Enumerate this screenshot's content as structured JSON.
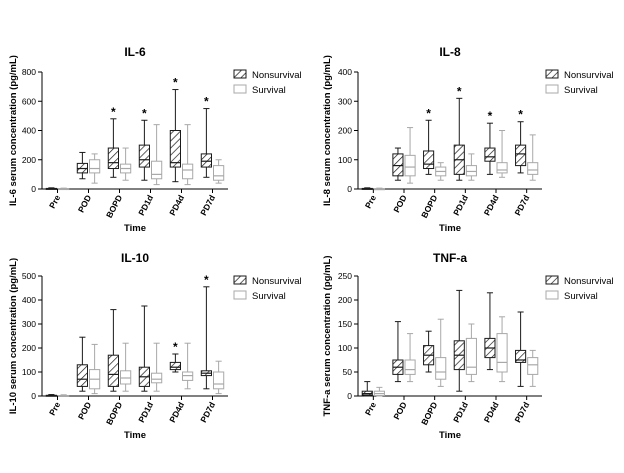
{
  "legend": {
    "nonsurvival": "Nonsurvival",
    "survival": "Survival"
  },
  "colors": {
    "nonsurvival": "#1a1a1a",
    "survival": "#a8a8a8",
    "axis": "#000000"
  },
  "chart_data": [
    {
      "type": "box",
      "title": "IL-6",
      "xlabel": "Time",
      "ylabel": "IL-6 serum concentration (pg/mL)",
      "ylim": [
        0,
        800
      ],
      "yticks": [
        0,
        200,
        400,
        600,
        800
      ],
      "categories": [
        "Pre",
        "POD",
        "BOPD",
        "PD1d",
        "PD4d",
        "PD7d"
      ],
      "significant": [
        false,
        false,
        true,
        true,
        true,
        true
      ],
      "legend_position": "right",
      "series": [
        {
          "name": "Nonsurvival",
          "boxes": [
            {
              "min": 0,
              "q1": 0,
              "median": 2,
              "q3": 4,
              "max": 8
            },
            {
              "min": 70,
              "q1": 110,
              "median": 140,
              "q3": 175,
              "max": 250
            },
            {
              "min": 80,
              "q1": 140,
              "median": 180,
              "q3": 280,
              "max": 480
            },
            {
              "min": 60,
              "q1": 150,
              "median": 200,
              "q3": 300,
              "max": 470
            },
            {
              "min": 50,
              "q1": 150,
              "median": 180,
              "q3": 400,
              "max": 680
            },
            {
              "min": 80,
              "q1": 150,
              "median": 190,
              "q3": 240,
              "max": 550
            }
          ]
        },
        {
          "name": "Survival",
          "boxes": [
            {
              "min": 0,
              "q1": 0,
              "median": 1,
              "q3": 3,
              "max": 6
            },
            {
              "min": 40,
              "q1": 110,
              "median": 140,
              "q3": 200,
              "max": 240
            },
            {
              "min": 60,
              "q1": 110,
              "median": 140,
              "q3": 170,
              "max": 280
            },
            {
              "min": 30,
              "q1": 70,
              "median": 100,
              "q3": 190,
              "max": 440
            },
            {
              "min": 30,
              "q1": 70,
              "median": 130,
              "q3": 170,
              "max": 440
            },
            {
              "min": 40,
              "q1": 60,
              "median": 90,
              "q3": 160,
              "max": 200
            }
          ]
        }
      ]
    },
    {
      "type": "box",
      "title": "IL-8",
      "xlabel": "Time",
      "ylabel": "IL-8 serum concentration (pg/mL)",
      "ylim": [
        0,
        400
      ],
      "yticks": [
        0,
        100,
        200,
        300,
        400
      ],
      "categories": [
        "Pre",
        "POD",
        "BOPD",
        "PD1d",
        "PD4d",
        "PD7d"
      ],
      "significant": [
        false,
        false,
        true,
        true,
        true,
        true
      ],
      "legend_position": "right",
      "series": [
        {
          "name": "Nonsurvival",
          "boxes": [
            {
              "min": 0,
              "q1": 0,
              "median": 1,
              "q3": 2,
              "max": 4
            },
            {
              "min": 30,
              "q1": 45,
              "median": 80,
              "q3": 120,
              "max": 140
            },
            {
              "min": 50,
              "q1": 70,
              "median": 85,
              "q3": 130,
              "max": 235
            },
            {
              "min": 30,
              "q1": 50,
              "median": 100,
              "q3": 150,
              "max": 310
            },
            {
              "min": 50,
              "q1": 95,
              "median": 110,
              "q3": 140,
              "max": 225
            },
            {
              "min": 55,
              "q1": 80,
              "median": 120,
              "q3": 150,
              "max": 230
            }
          ]
        },
        {
          "name": "Survival",
          "boxes": [
            {
              "min": 0,
              "q1": 0,
              "median": 0.5,
              "q3": 1,
              "max": 3
            },
            {
              "min": 20,
              "q1": 45,
              "median": 75,
              "q3": 115,
              "max": 210
            },
            {
              "min": 30,
              "q1": 45,
              "median": 60,
              "q3": 75,
              "max": 90
            },
            {
              "min": 30,
              "q1": 45,
              "median": 60,
              "q3": 80,
              "max": 120
            },
            {
              "min": 40,
              "q1": 55,
              "median": 65,
              "q3": 90,
              "max": 200
            },
            {
              "min": 30,
              "q1": 50,
              "median": 65,
              "q3": 90,
              "max": 185
            }
          ]
        }
      ]
    },
    {
      "type": "box",
      "title": "IL-10",
      "xlabel": "Time",
      "ylabel": "IL-10 serum concentration (pg/mL)",
      "ylim": [
        0,
        500
      ],
      "yticks": [
        0,
        100,
        200,
        300,
        400,
        500
      ],
      "categories": [
        "Pre",
        "POD",
        "BOPD",
        "PD1d",
        "PD4d",
        "PD7d"
      ],
      "significant": [
        false,
        false,
        false,
        false,
        true,
        true
      ],
      "legend_position": "right",
      "series": [
        {
          "name": "Nonsurvival",
          "boxes": [
            {
              "min": 0,
              "q1": 0,
              "median": 1,
              "q3": 3,
              "max": 6
            },
            {
              "min": 20,
              "q1": 40,
              "median": 70,
              "q3": 130,
              "max": 245
            },
            {
              "min": 20,
              "q1": 40,
              "median": 90,
              "q3": 170,
              "max": 360
            },
            {
              "min": 20,
              "q1": 40,
              "median": 80,
              "q3": 120,
              "max": 375
            },
            {
              "min": 100,
              "q1": 110,
              "median": 120,
              "q3": 140,
              "max": 175
            },
            {
              "min": 30,
              "q1": 85,
              "median": 95,
              "q3": 105,
              "max": 455
            }
          ]
        },
        {
          "name": "Survival",
          "boxes": [
            {
              "min": 0,
              "q1": 0,
              "median": 0.5,
              "q3": 2,
              "max": 5
            },
            {
              "min": 10,
              "q1": 30,
              "median": 70,
              "q3": 110,
              "max": 215
            },
            {
              "min": 20,
              "q1": 50,
              "median": 75,
              "q3": 105,
              "max": 220
            },
            {
              "min": 20,
              "q1": 55,
              "median": 70,
              "q3": 95,
              "max": 220
            },
            {
              "min": 30,
              "q1": 65,
              "median": 85,
              "q3": 100,
              "max": 220
            },
            {
              "min": 10,
              "q1": 30,
              "median": 50,
              "q3": 100,
              "max": 145
            }
          ]
        }
      ]
    },
    {
      "type": "box",
      "title": "TNF-a",
      "xlabel": "Time",
      "ylabel": "TNF-a serum concentration (pg/mL)",
      "ylim": [
        0,
        250
      ],
      "yticks": [
        0,
        50,
        100,
        150,
        200,
        250
      ],
      "categories": [
        "Pre",
        "POD",
        "BOPD",
        "PD1d",
        "PD4d",
        "PD7d"
      ],
      "significant": [
        false,
        false,
        false,
        false,
        false,
        false
      ],
      "legend_position": "right",
      "series": [
        {
          "name": "Nonsurvival",
          "boxes": [
            {
              "min": 0,
              "q1": 2,
              "median": 5,
              "q3": 10,
              "max": 30
            },
            {
              "min": 30,
              "q1": 45,
              "median": 60,
              "q3": 75,
              "max": 155
            },
            {
              "min": 50,
              "q1": 65,
              "median": 85,
              "q3": 105,
              "max": 135
            },
            {
              "min": 10,
              "q1": 55,
              "median": 85,
              "q3": 115,
              "max": 220
            },
            {
              "min": 55,
              "q1": 80,
              "median": 100,
              "q3": 120,
              "max": 215
            },
            {
              "min": 20,
              "q1": 70,
              "median": 75,
              "q3": 95,
              "max": 175
            }
          ]
        },
        {
          "name": "Survival",
          "boxes": [
            {
              "min": 0,
              "q1": 1,
              "median": 5,
              "q3": 10,
              "max": 18
            },
            {
              "min": 30,
              "q1": 45,
              "median": 55,
              "q3": 75,
              "max": 130
            },
            {
              "min": 20,
              "q1": 35,
              "median": 50,
              "q3": 80,
              "max": 160
            },
            {
              "min": 30,
              "q1": 45,
              "median": 60,
              "q3": 120,
              "max": 150
            },
            {
              "min": 30,
              "q1": 50,
              "median": 70,
              "q3": 130,
              "max": 165
            },
            {
              "min": 20,
              "q1": 45,
              "median": 65,
              "q3": 80,
              "max": 95
            }
          ]
        }
      ]
    }
  ]
}
